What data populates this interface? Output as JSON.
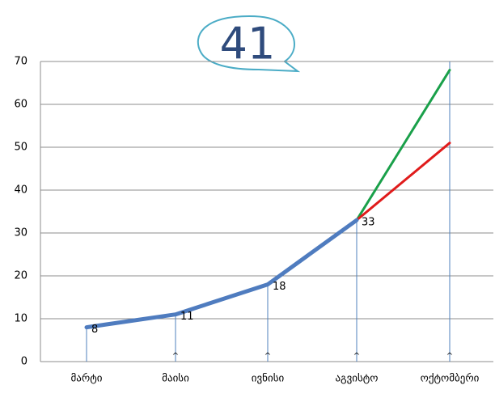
{
  "chart_data": {
    "type": "line",
    "title": "41",
    "categories": [
      "მარტი",
      "მაისი",
      "ივნისი",
      "აგვისტო",
      "ოქტომბერი"
    ],
    "series": [
      {
        "color": "#4f7cbf",
        "values": [
          8,
          11,
          18,
          33,
          null
        ]
      },
      {
        "color": "#1aa04a",
        "values": [
          null,
          null,
          null,
          33,
          68
        ]
      },
      {
        "color": "#e01b1b",
        "values": [
          null,
          null,
          null,
          33,
          51
        ]
      }
    ],
    "drop_markers": [
      null,
      "^",
      "^",
      "^",
      "^"
    ],
    "ylim": [
      0,
      70
    ],
    "yticks": [
      0,
      10,
      20,
      30,
      40,
      50,
      60,
      70
    ],
    "grid": true
  }
}
